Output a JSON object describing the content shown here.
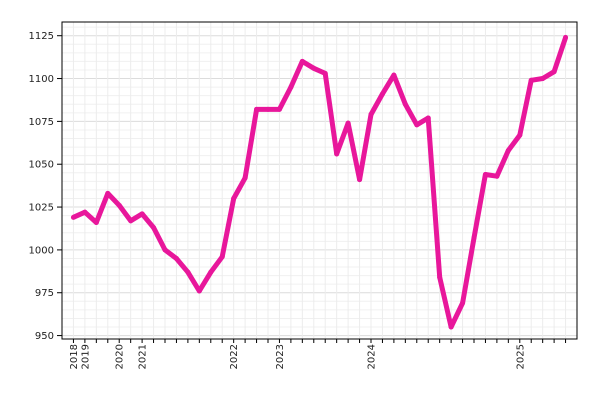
{
  "chart_data": {
    "type": "line",
    "title": "",
    "xlabel": "",
    "ylabel": "",
    "ylim": [
      948,
      1133
    ],
    "y_ticks": [
      950,
      975,
      1000,
      1025,
      1050,
      1075,
      1100,
      1125
    ],
    "x_tick_labels": [
      {
        "label": "2018",
        "x": 0
      },
      {
        "label": "2019",
        "x": 1
      },
      {
        "label": "2020",
        "x": 4
      },
      {
        "label": "2021",
        "x": 6
      },
      {
        "label": "2022",
        "x": 14
      },
      {
        "label": "2023",
        "x": 18
      },
      {
        "label": "2024",
        "x": 26
      },
      {
        "label": "2025",
        "x": 39
      }
    ],
    "grid": true,
    "series": [
      {
        "color": "#E8179B",
        "x": [
          0,
          1,
          2,
          3,
          4,
          5,
          6,
          7,
          8,
          9,
          10,
          11,
          12,
          13,
          14,
          15,
          16,
          17,
          18,
          19,
          20,
          21,
          22,
          23,
          24,
          25,
          26,
          27,
          28,
          29,
          30,
          31,
          32,
          33,
          34,
          35,
          36,
          37,
          38,
          39,
          40,
          41,
          42,
          43
        ],
        "values": [
          1019,
          1022,
          1016,
          1033,
          1026,
          1017,
          1021,
          1013,
          1000,
          995,
          987,
          976,
          987,
          996,
          1030,
          1042,
          1082,
          1082,
          1082,
          1095,
          1110,
          1106,
          1103,
          1056,
          1074,
          1041,
          1079,
          1091,
          1102,
          1085,
          1073,
          1077,
          984,
          955,
          969,
          1007,
          1044,
          1043,
          1058,
          1067,
          1099,
          1100,
          1104,
          1124
        ]
      }
    ]
  }
}
